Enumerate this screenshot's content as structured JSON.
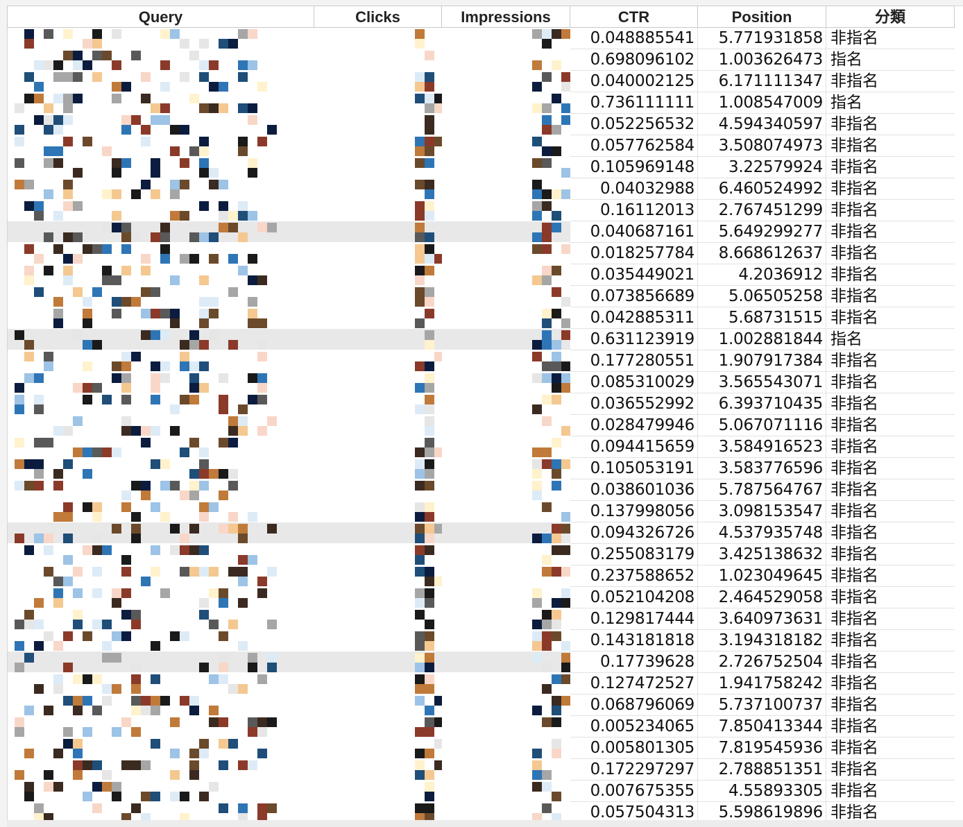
{
  "sheet": {
    "headers": {
      "query": "Query",
      "clicks": "Clicks",
      "impressions": "Impressions",
      "ctr": "CTR",
      "position": "Position",
      "category": "分類"
    },
    "palette": [
      "#0b1c3f",
      "#1f4e79",
      "#2e75b6",
      "#9dc3e6",
      "#ddebf7",
      "#3b2a20",
      "#6b4a2b",
      "#c07a3a",
      "#f4c890",
      "#fff2cc",
      "#1a1a1a",
      "#595959",
      "#a6a6a6",
      "#e7e6e6",
      "#8b3a2a",
      "#f8d7c8"
    ],
    "rows": [
      {
        "ctr": "0.048885541",
        "position": "5.771931858",
        "category": "非指名"
      },
      {
        "ctr": "0.698096102",
        "position": "1.003626473",
        "category": "指名"
      },
      {
        "ctr": "0.040002125",
        "position": "6.171111347",
        "category": "非指名"
      },
      {
        "ctr": "0.736111111",
        "position": "1.008547009",
        "category": "指名"
      },
      {
        "ctr": "0.052256532",
        "position": "4.594340597",
        "category": "非指名"
      },
      {
        "ctr": "0.057762584",
        "position": "3.508074973",
        "category": "非指名"
      },
      {
        "ctr": "0.105969148",
        "position": "3.22579924",
        "category": "非指名"
      },
      {
        "ctr": "0.04032988",
        "position": "6.460524992",
        "category": "非指名"
      },
      {
        "ctr": "0.16112013",
        "position": "2.767451299",
        "category": "非指名"
      },
      {
        "ctr": "0.040687161",
        "position": "5.649299277",
        "category": "非指名"
      },
      {
        "ctr": "0.018257784",
        "position": "8.668612637",
        "category": "非指名"
      },
      {
        "ctr": "0.035449021",
        "position": "4.2036912",
        "category": "非指名"
      },
      {
        "ctr": "0.073856689",
        "position": "5.06505258",
        "category": "非指名"
      },
      {
        "ctr": "0.042885311",
        "position": "5.68731515",
        "category": "非指名"
      },
      {
        "ctr": "0.631123919",
        "position": "1.002881844",
        "category": "指名"
      },
      {
        "ctr": "0.177280551",
        "position": "1.907917384",
        "category": "非指名"
      },
      {
        "ctr": "0.085310029",
        "position": "3.565543071",
        "category": "非指名"
      },
      {
        "ctr": "0.036552992",
        "position": "6.393710435",
        "category": "非指名"
      },
      {
        "ctr": "0.028479946",
        "position": "5.067071116",
        "category": "非指名"
      },
      {
        "ctr": "0.094415659",
        "position": "3.584916523",
        "category": "非指名"
      },
      {
        "ctr": "0.105053191",
        "position": "3.583776596",
        "category": "非指名"
      },
      {
        "ctr": "0.038601036",
        "position": "5.787564767",
        "category": "非指名"
      },
      {
        "ctr": "0.137998056",
        "position": "3.098153547",
        "category": "非指名"
      },
      {
        "ctr": "0.094326726",
        "position": "4.537935748",
        "category": "非指名"
      },
      {
        "ctr": "0.255083179",
        "position": "3.425138632",
        "category": "非指名"
      },
      {
        "ctr": "0.237588652",
        "position": "1.023049645",
        "category": "非指名"
      },
      {
        "ctr": "0.052104208",
        "position": "2.464529058",
        "category": "非指名"
      },
      {
        "ctr": "0.129817444",
        "position": "3.640973631",
        "category": "非指名"
      },
      {
        "ctr": "0.143181818",
        "position": "3.194318182",
        "category": "非指名"
      },
      {
        "ctr": "0.17739628",
        "position": "2.726752504",
        "category": "非指名"
      },
      {
        "ctr": "0.127472527",
        "position": "1.941758242",
        "category": "非指名"
      },
      {
        "ctr": "0.068796069",
        "position": "5.737100737",
        "category": "非指名"
      },
      {
        "ctr": "0.005234065",
        "position": "7.850413344",
        "category": "非指名"
      },
      {
        "ctr": "0.005801305",
        "position": "7.819545936",
        "category": "非指名"
      },
      {
        "ctr": "0.172297297",
        "position": "2.788851351",
        "category": "非指名"
      },
      {
        "ctr": "0.007675355",
        "position": "4.55893305",
        "category": "非指名"
      },
      {
        "ctr": "0.057504313",
        "position": "5.598619896",
        "category": "非指名"
      }
    ]
  }
}
